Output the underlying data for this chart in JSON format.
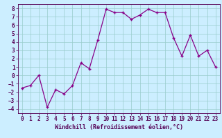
{
  "x_data": [
    0,
    1,
    2,
    3,
    4,
    5,
    6,
    7,
    8,
    9,
    10,
    11,
    12,
    13,
    14,
    15,
    16,
    17,
    18,
    19,
    20,
    21,
    22,
    23
  ],
  "y_data": [
    -1.5,
    -1.2,
    0.0,
    -3.8,
    -1.7,
    -2.2,
    -1.2,
    1.5,
    0.8,
    4.2,
    7.9,
    7.5,
    7.5,
    6.7,
    7.2,
    7.9,
    7.5,
    7.5,
    4.5,
    2.3,
    4.8,
    2.3,
    3.0,
    1.0
  ],
  "line_color": "#880088",
  "marker": "+",
  "bg_color": "#cceeff",
  "grid_color": "#99cccc",
  "axis_color": "#550055",
  "tick_color": "#550055",
  "xlabel": "Windchill (Refroidissement éolien,°C)",
  "ylim": [
    -4.5,
    8.5
  ],
  "xlim": [
    -0.5,
    23.5
  ],
  "yticks": [
    -4,
    -3,
    -2,
    -1,
    0,
    1,
    2,
    3,
    4,
    5,
    6,
    7,
    8
  ],
  "xticks": [
    0,
    1,
    2,
    3,
    4,
    5,
    6,
    7,
    8,
    9,
    10,
    11,
    12,
    13,
    14,
    15,
    16,
    17,
    18,
    19,
    20,
    21,
    22,
    23
  ],
  "xlabel_fontsize": 6.0,
  "tick_fontsize": 5.5
}
